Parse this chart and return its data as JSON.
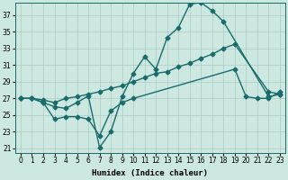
{
  "xlabel": "Humidex (Indice chaleur)",
  "xlim": [
    -0.5,
    23.5
  ],
  "ylim": [
    20.5,
    38.5
  ],
  "yticks": [
    21,
    23,
    25,
    27,
    29,
    31,
    33,
    35,
    37
  ],
  "xticks": [
    0,
    1,
    2,
    3,
    4,
    5,
    6,
    7,
    8,
    9,
    10,
    11,
    12,
    13,
    14,
    15,
    16,
    17,
    18,
    19,
    20,
    21,
    22,
    23
  ],
  "bg_color": "#cce8e0",
  "grid_color": "#aaccc4",
  "line_color": "#1a6b6b",
  "line1_x": [
    0,
    1,
    2,
    3,
    4,
    5,
    6,
    7,
    8,
    9,
    10,
    11,
    12,
    13,
    14,
    15,
    16,
    17,
    18,
    22,
    23
  ],
  "line1_y": [
    27.0,
    27.0,
    26.5,
    26.0,
    25.8,
    26.5,
    27.3,
    21.1,
    23.0,
    27.2,
    30.0,
    32.0,
    30.5,
    34.3,
    35.5,
    38.3,
    38.5,
    37.5,
    36.2,
    27.2,
    27.5
  ],
  "line2_x": [
    0,
    1,
    2,
    3,
    4,
    5,
    6,
    7,
    8,
    9,
    10,
    11,
    12,
    13,
    14,
    15,
    16,
    17,
    18,
    19,
    22,
    23
  ],
  "line2_y": [
    27.0,
    27.0,
    26.8,
    26.5,
    27.0,
    27.2,
    27.5,
    27.8,
    28.2,
    28.5,
    29.0,
    29.5,
    30.0,
    30.2,
    30.8,
    31.2,
    31.8,
    32.3,
    33.0,
    33.5,
    27.8,
    27.5
  ],
  "line3_x": [
    0,
    1,
    2,
    3,
    4,
    5,
    6,
    7,
    8,
    9,
    10,
    19,
    20,
    21,
    22,
    23
  ],
  "line3_y": [
    27.0,
    27.0,
    26.5,
    24.5,
    24.8,
    24.8,
    24.5,
    22.5,
    25.5,
    26.5,
    27.0,
    30.5,
    27.2,
    27.0,
    27.0,
    27.8
  ],
  "marker": "D",
  "markersize": 2.5,
  "linewidth": 1.0,
  "tick_fontsize": 5.5,
  "xlabel_fontsize": 6.5
}
